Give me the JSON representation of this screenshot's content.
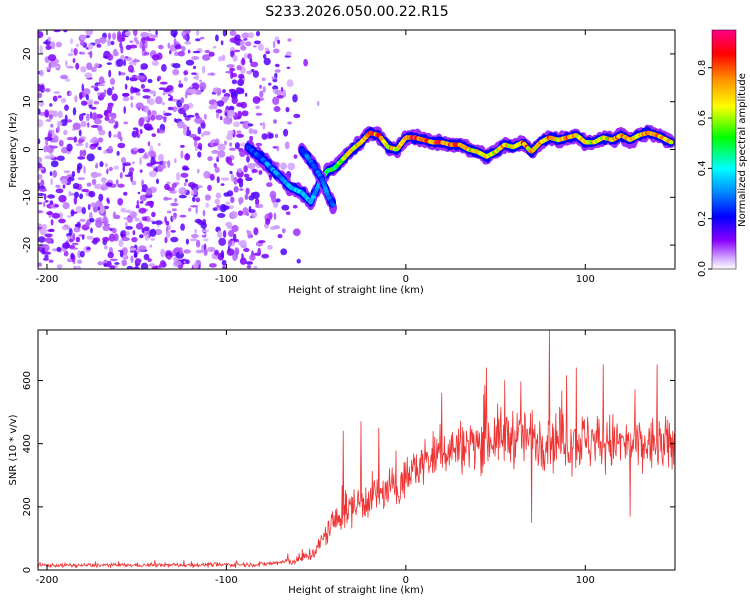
{
  "title": "S233.2026.050.00.22.R15",
  "chart_data": [
    {
      "type": "heatmap",
      "name": "spectrogram",
      "xlabel": "Height of straight line (km)",
      "ylabel": "Frequency (Hz)",
      "xlim": [
        -205,
        150
      ],
      "ylim": [
        -25,
        25
      ],
      "xticks": [
        -200,
        -100,
        0,
        100
      ],
      "yticks": [
        -20,
        -10,
        0,
        10,
        20
      ],
      "colorbar": {
        "label": "Normalized spectral amplitude",
        "range": [
          0,
          0.95
        ],
        "ticks": [
          0.0,
          0.2,
          0.4,
          0.6,
          0.8
        ]
      },
      "ridge": {
        "x": [
          -88,
          -80,
          -72,
          -64,
          -58,
          -53,
          -48,
          -44,
          -40,
          -35,
          -30,
          -25,
          -20,
          -15,
          -10,
          -5,
          0,
          5,
          10,
          15,
          20,
          25,
          30,
          35,
          40,
          45,
          50,
          55,
          60,
          65,
          70,
          75,
          80,
          85,
          90,
          95,
          100,
          105,
          110,
          115,
          120,
          125,
          130,
          135,
          140,
          148
        ],
        "freq": [
          0.5,
          -2,
          -5,
          -8,
          -9,
          -11,
          -7,
          -4.5,
          -4,
          -2,
          0,
          1.5,
          3.5,
          3,
          0.5,
          0,
          2.5,
          2.5,
          2,
          1.5,
          1.5,
          1,
          1,
          0,
          -0.5,
          -1.5,
          -0.5,
          1,
          0.5,
          1.5,
          -0.5,
          1.5,
          2.5,
          2,
          2.5,
          3,
          1.5,
          1.5,
          2.5,
          2,
          3,
          2,
          3,
          3.5,
          3,
          1.5
        ],
        "amplitude": [
          0.25,
          0.3,
          0.35,
          0.35,
          0.4,
          0.35,
          0.4,
          0.5,
          0.55,
          0.6,
          0.7,
          0.75,
          0.85,
          0.8,
          0.75,
          0.7,
          0.8,
          0.85,
          0.8,
          0.8,
          0.9,
          0.85,
          0.8,
          0.75,
          0.7,
          0.75,
          0.7,
          0.75,
          0.7,
          0.8,
          0.75,
          0.75,
          0.8,
          0.7,
          0.8,
          0.75,
          0.7,
          0.75,
          0.7,
          0.75,
          0.8,
          0.7,
          0.75,
          0.8,
          0.75,
          0.7
        ]
      },
      "secondary_branch": {
        "x": [
          -58,
          -52,
          -47,
          -43,
          -40
        ],
        "freq": [
          0,
          -3,
          -6,
          -10,
          -12
        ]
      },
      "noise_region": {
        "x_from": -205,
        "x_to": -60,
        "ymin": -25,
        "ymax": 25
      }
    },
    {
      "type": "line",
      "name": "snr",
      "xlabel": "Height of straight line (km)",
      "ylabel": "SNR (10 * v/v)",
      "xlim": [
        -205,
        150
      ],
      "ylim": [
        0,
        760
      ],
      "xticks": [
        -200,
        -100,
        0,
        100
      ],
      "yticks": [
        0,
        200,
        400,
        600
      ],
      "color": "#ee3333",
      "envelope": {
        "x": [
          -205,
          -160,
          -120,
          -80,
          -60,
          -50,
          -45,
          -40,
          -35,
          -30,
          -25,
          -20,
          -15,
          -10,
          -5,
          0,
          5,
          10,
          15,
          20,
          30,
          40,
          50,
          60,
          70,
          80,
          90,
          100,
          110,
          120,
          130,
          140,
          150
        ],
        "mean": [
          15,
          15,
          16,
          18,
          30,
          60,
          110,
          150,
          180,
          200,
          215,
          230,
          240,
          250,
          265,
          290,
          320,
          340,
          360,
          375,
          390,
          405,
          420,
          425,
          420,
          415,
          410,
          410,
          405,
          400,
          395,
          395,
          390
        ],
        "spread": [
          10,
          10,
          11,
          12,
          20,
          40,
          60,
          75,
          85,
          90,
          95,
          100,
          100,
          100,
          100,
          100,
          105,
          110,
          115,
          120,
          125,
          130,
          140,
          145,
          145,
          150,
          150,
          145,
          140,
          140,
          135,
          135,
          130
        ]
      },
      "spikes": [
        {
          "x": -35,
          "y": 440
        },
        {
          "x": -25,
          "y": 470
        },
        {
          "x": -15,
          "y": 450
        },
        {
          "x": 20,
          "y": 560
        },
        {
          "x": 45,
          "y": 640
        },
        {
          "x": 55,
          "y": 600
        },
        {
          "x": 70,
          "y": 620
        },
        {
          "x": 80,
          "y": 760
        },
        {
          "x": 95,
          "y": 640
        },
        {
          "x": 110,
          "y": 650
        },
        {
          "x": 125,
          "y": 620
        },
        {
          "x": 140,
          "y": 650
        },
        {
          "x": 70,
          "y": 150
        },
        {
          "x": 125,
          "y": 170
        }
      ]
    }
  ]
}
